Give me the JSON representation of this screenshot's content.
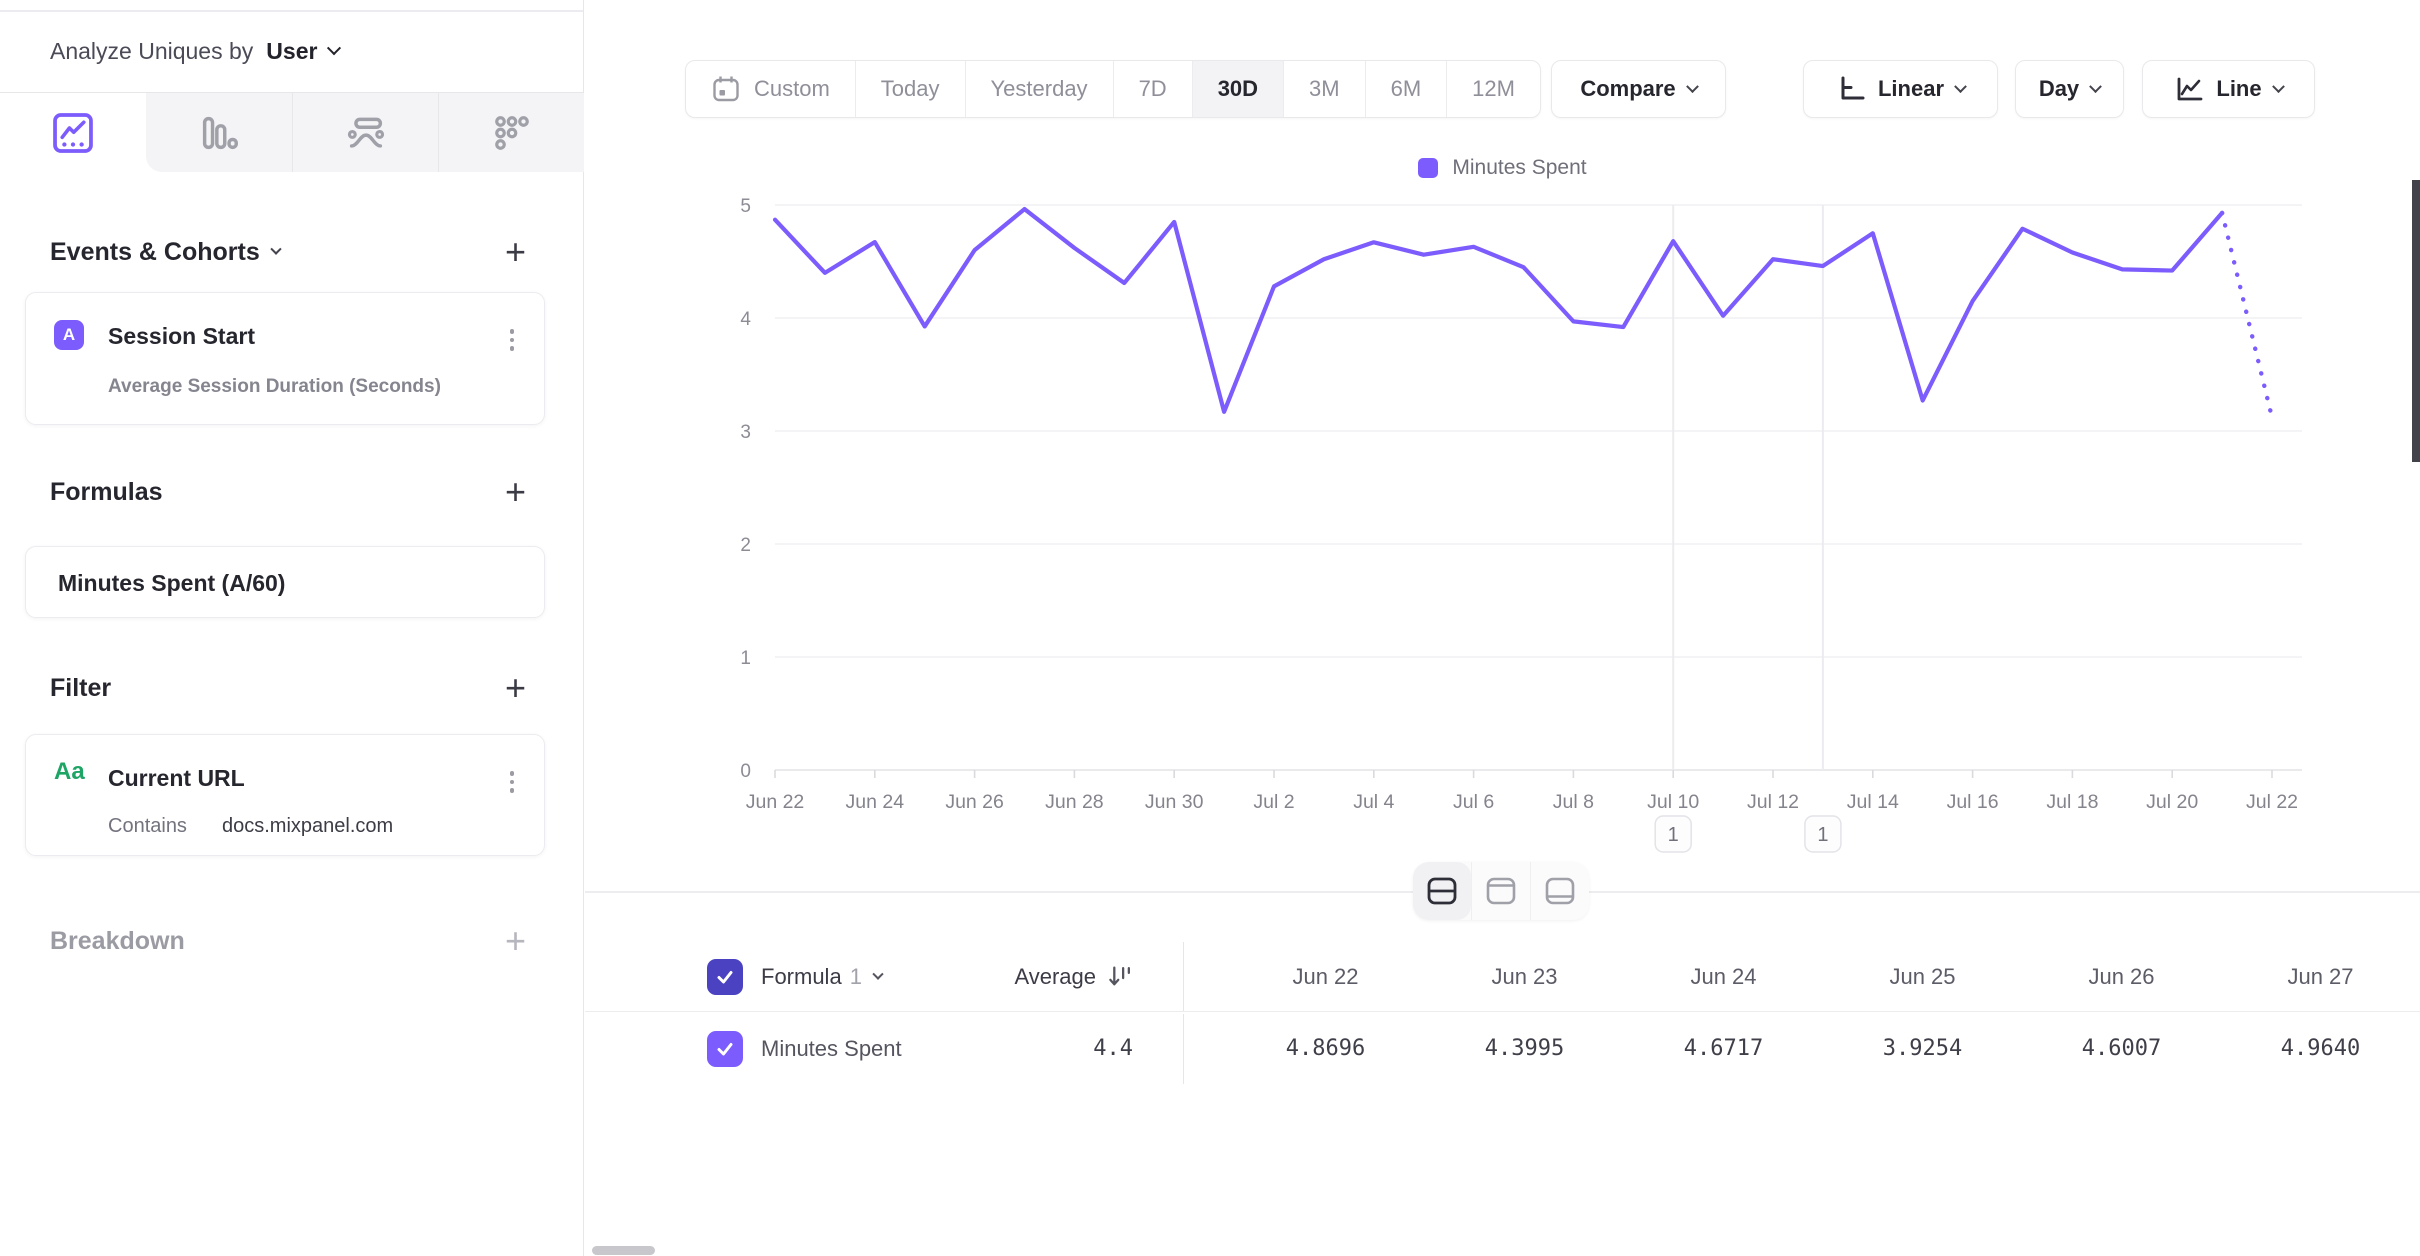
{
  "sidebar": {
    "analyze": {
      "label": "Analyze Uniques by",
      "value": "User"
    },
    "tabs": [
      {
        "name": "line-chart",
        "active": true
      },
      {
        "name": "bar-chart",
        "active": false
      },
      {
        "name": "flows",
        "active": false
      },
      {
        "name": "retention",
        "active": false
      }
    ],
    "events": {
      "title": "Events & Cohorts",
      "card": {
        "badge": "A",
        "title": "Session Start",
        "subtitle": "Average Session Duration (Seconds)"
      }
    },
    "formulas": {
      "title": "Formulas",
      "card": {
        "title": "Minutes Spent (A/60)"
      }
    },
    "filter": {
      "title": "Filter",
      "card": {
        "badge": "Aa",
        "title": "Current URL",
        "operator": "Contains",
        "value": "docs.mixpanel.com"
      }
    },
    "breakdown": {
      "title": "Breakdown"
    }
  },
  "toolbar": {
    "date_ranges": [
      "Custom",
      "Today",
      "Yesterday",
      "7D",
      "30D",
      "3M",
      "6M",
      "12M"
    ],
    "selected_range": "30D",
    "compare_label": "Compare",
    "scale_label": "Linear",
    "interval_label": "Day",
    "chart_type_label": "Line"
  },
  "chart_data": {
    "type": "line",
    "legend": "Minutes Spent",
    "color": "#7c5cfc",
    "ylim": [
      0,
      5
    ],
    "tick_every": 2,
    "grid": true,
    "last_point_dotted": true,
    "dates": [
      "Jun 22",
      "Jun 23",
      "Jun 24",
      "Jun 25",
      "Jun 26",
      "Jun 27",
      "Jun 28",
      "Jun 29",
      "Jun 30",
      "Jul 1",
      "Jul 2",
      "Jul 3",
      "Jul 4",
      "Jul 5",
      "Jul 6",
      "Jul 7",
      "Jul 8",
      "Jul 9",
      "Jul 10",
      "Jul 11",
      "Jul 12",
      "Jul 13",
      "Jul 14",
      "Jul 15",
      "Jul 16",
      "Jul 17",
      "Jul 18",
      "Jul 19",
      "Jul 20",
      "Jul 21",
      "Jul 22"
    ],
    "values": [
      4.8696,
      4.3995,
      4.6717,
      3.9254,
      4.6007,
      4.964,
      4.62,
      4.31,
      4.85,
      3.17,
      4.28,
      4.52,
      4.67,
      4.56,
      4.63,
      4.45,
      3.97,
      3.92,
      4.68,
      4.02,
      4.52,
      4.46,
      4.75,
      3.27,
      4.15,
      4.79,
      4.58,
      4.43,
      4.42,
      4.93,
      3.12
    ],
    "annotations": [
      {
        "x": "Jul 10",
        "label": "1"
      },
      {
        "x": "Jul 13",
        "label": "1"
      }
    ]
  },
  "table": {
    "header": {
      "name": "Formula",
      "name_index": "1",
      "average_label": "Average"
    },
    "columns": [
      "Jun 22",
      "Jun 23",
      "Jun 24",
      "Jun 25",
      "Jun 26",
      "Jun 27"
    ],
    "rows": [
      {
        "name": "Minutes Spent",
        "average": "4.4",
        "values": [
          "4.8696",
          "4.3995",
          "4.6717",
          "3.9254",
          "4.6007",
          "4.9640"
        ]
      }
    ]
  }
}
